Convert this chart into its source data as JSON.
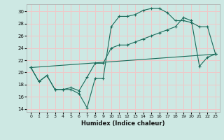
{
  "title": "",
  "xlabel": "Humidex (Indice chaleur)",
  "bg_color": "#cde8e3",
  "grid_color": "#f0c8c8",
  "line_color": "#1a6b5a",
  "xlim": [
    -0.5,
    23.5
  ],
  "ylim": [
    13.5,
    31.2
  ],
  "xticks": [
    0,
    1,
    2,
    3,
    4,
    5,
    6,
    7,
    8,
    9,
    10,
    11,
    12,
    13,
    14,
    15,
    16,
    17,
    18,
    19,
    20,
    21,
    22,
    23
  ],
  "yticks": [
    14,
    16,
    18,
    20,
    22,
    24,
    26,
    28,
    30
  ],
  "line1_x": [
    0,
    1,
    2,
    3,
    4,
    5,
    6,
    7,
    8,
    9,
    10,
    11,
    12,
    13,
    14,
    15,
    16,
    17,
    18,
    19,
    20,
    21,
    22,
    23
  ],
  "line1_y": [
    20.8,
    18.5,
    19.5,
    17.2,
    17.2,
    17.2,
    16.5,
    14.2,
    19.0,
    19.0,
    27.5,
    29.2,
    29.2,
    29.5,
    30.2,
    30.5,
    30.5,
    29.8,
    28.5,
    28.5,
    28.2,
    27.5,
    27.5,
    23.0
  ],
  "line2_x": [
    0,
    1,
    2,
    3,
    4,
    5,
    6,
    7,
    8,
    9,
    10,
    11,
    12,
    13,
    14,
    15,
    16,
    17,
    18,
    19,
    20,
    21,
    22,
    23
  ],
  "line2_y": [
    20.8,
    18.5,
    19.5,
    17.2,
    17.2,
    17.5,
    17.0,
    19.2,
    21.5,
    21.5,
    24.0,
    24.5,
    24.5,
    25.0,
    25.5,
    26.0,
    26.5,
    27.0,
    27.5,
    29.0,
    28.5,
    21.0,
    22.5,
    23.0
  ],
  "line3_x": [
    0,
    23
  ],
  "line3_y": [
    20.8,
    23.0
  ]
}
